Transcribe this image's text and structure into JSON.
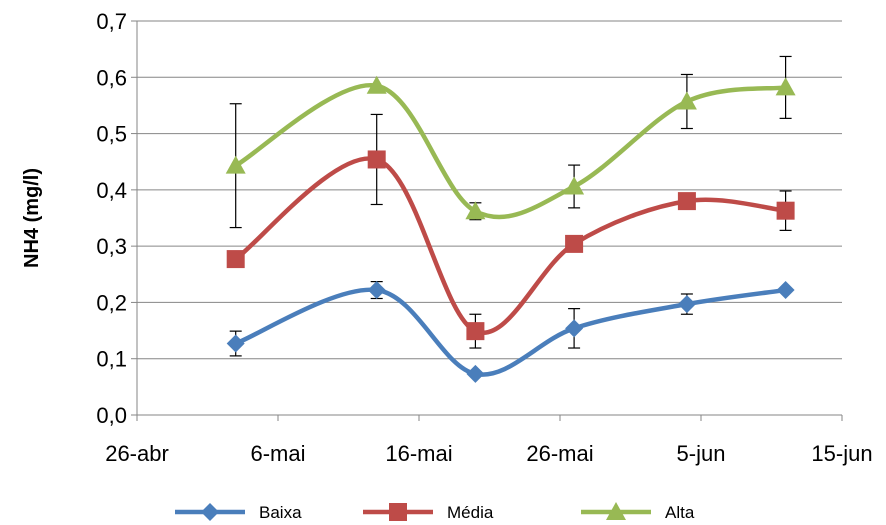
{
  "chart_data": {
    "type": "line",
    "ylabel": "NH4 (mg/l)",
    "xlabel": "",
    "title": "",
    "ylim": [
      0,
      0.7
    ],
    "yticks": [
      "0,0",
      "0,1",
      "0,2",
      "0,3",
      "0,4",
      "0,5",
      "0,6",
      "0,7"
    ],
    "xlim": [
      "2010-04-26",
      "2010-06-15"
    ],
    "xticks": [
      "26-abr",
      "6-mai",
      "16-mai",
      "26-mai",
      "5-jun",
      "15-jun"
    ],
    "grid": "horizontal",
    "legend_position": "bottom",
    "x": [
      "2010-05-03",
      "2010-05-13",
      "2010-05-20",
      "2010-05-27",
      "2010-06-04",
      "2010-06-11"
    ],
    "series": [
      {
        "name": "Baixa",
        "color": "#4a7ebb",
        "marker": "diamond",
        "values": [
          0.127,
          0.222,
          0.073,
          0.154,
          0.197,
          0.222
        ],
        "error": [
          0.022,
          0.015,
          0.0,
          0.035,
          0.018,
          0.0
        ]
      },
      {
        "name": "Média",
        "color": "#be4b48",
        "marker": "square",
        "values": [
          0.277,
          0.454,
          0.149,
          0.304,
          0.38,
          0.363
        ],
        "error": [
          0.0,
          0.08,
          0.03,
          0.0,
          0.0,
          0.035
        ]
      },
      {
        "name": "Alta",
        "color": "#98b954",
        "marker": "triangle",
        "values": [
          0.443,
          0.585,
          0.362,
          0.406,
          0.557,
          0.582
        ],
        "error": [
          0.11,
          0.0,
          0.015,
          0.038,
          0.048,
          0.055
        ]
      }
    ]
  }
}
